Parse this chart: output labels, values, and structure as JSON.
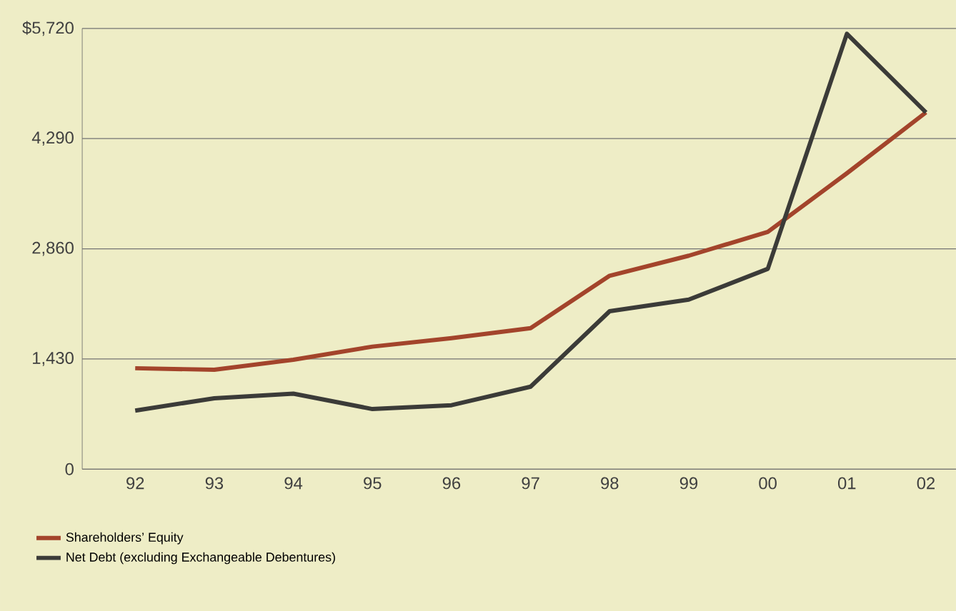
{
  "chart_data": {
    "type": "line",
    "categories": [
      "92",
      "93",
      "94",
      "95",
      "96",
      "97",
      "98",
      "99",
      "00",
      "01",
      "02"
    ],
    "series": [
      {
        "name": "Shareholders’ Equity",
        "color": "#a3442b",
        "values": [
          1310,
          1290,
          1420,
          1590,
          1700,
          1830,
          2510,
          2770,
          3080,
          3840,
          4630
        ]
      },
      {
        "name": "Net Debt (excluding Exchangeable Debentures)",
        "color": "#3b3b38",
        "values": [
          760,
          920,
          980,
          780,
          830,
          1070,
          2050,
          2200,
          2600,
          5650,
          4630
        ]
      }
    ],
    "ylim": [
      0,
      5720
    ],
    "yticks": [
      {
        "value": 0,
        "label": "0"
      },
      {
        "value": 1430,
        "label": "1,430"
      },
      {
        "value": 2860,
        "label": "2,860"
      },
      {
        "value": 4290,
        "label": "4,290"
      },
      {
        "value": 5720,
        "label": "$5,720"
      }
    ],
    "grid": "y",
    "legend": "bottom left",
    "marker": "none",
    "line_style": "solid"
  }
}
